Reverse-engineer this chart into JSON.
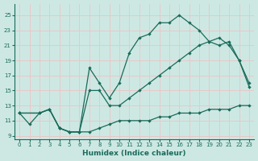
{
  "title": "",
  "xlabel": "Humidex (Indice chaleur)",
  "ylabel": "",
  "bg_color": "#cde8e3",
  "grid_color": "#b8d8d2",
  "line_color": "#1a6b5a",
  "xlim": [
    -0.5,
    23.5
  ],
  "ylim": [
    8.5,
    26.5
  ],
  "xticks": [
    0,
    1,
    2,
    3,
    4,
    5,
    6,
    7,
    8,
    9,
    10,
    11,
    12,
    13,
    14,
    15,
    16,
    17,
    18,
    19,
    20,
    21,
    22,
    23
  ],
  "yticks": [
    9,
    11,
    13,
    15,
    17,
    19,
    21,
    23,
    25
  ],
  "line1_x": [
    0,
    1,
    2,
    3,
    4,
    5,
    6,
    7,
    8,
    9,
    10,
    11,
    12,
    13,
    14,
    15,
    16,
    17,
    18,
    19,
    20,
    21,
    22,
    23
  ],
  "line1_y": [
    12,
    10.5,
    12,
    12.5,
    10,
    9.5,
    9.5,
    9.5,
    10,
    10.5,
    11,
    11,
    11,
    11,
    11.5,
    11.5,
    12,
    12,
    12,
    12.5,
    12.5,
    12.5,
    13,
    13
  ],
  "line2_x": [
    0,
    2,
    3,
    4,
    5,
    6,
    7,
    8,
    9,
    10,
    11,
    12,
    13,
    14,
    15,
    16,
    17,
    18,
    19,
    20,
    21,
    22,
    23
  ],
  "line2_y": [
    12,
    12,
    12.5,
    10,
    9.5,
    9.5,
    15,
    15,
    13,
    13,
    14,
    15,
    16,
    17,
    18,
    19,
    20,
    21,
    21.5,
    22,
    21,
    19,
    16
  ],
  "line3_x": [
    0,
    2,
    3,
    4,
    5,
    6,
    7,
    8,
    9,
    10,
    11,
    12,
    13,
    14,
    15,
    16,
    17,
    18,
    19,
    20,
    21,
    22,
    23
  ],
  "line3_y": [
    12,
    12,
    12.5,
    10,
    9.5,
    9.5,
    18,
    16,
    14,
    16,
    20,
    22,
    22.5,
    24,
    24,
    25,
    24,
    23,
    21.5,
    21,
    21.5,
    19,
    15.5
  ]
}
